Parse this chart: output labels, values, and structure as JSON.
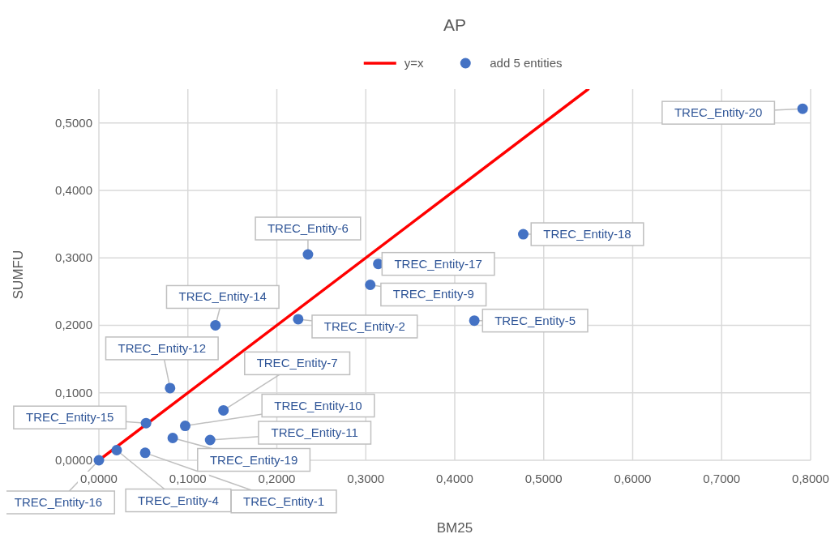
{
  "chart_data": {
    "type": "scatter",
    "title": "AP",
    "xlabel": "BM25",
    "ylabel": "SUMFU",
    "xlim": [
      0,
      0.8
    ],
    "ylim": [
      0,
      0.55
    ],
    "xticks": [
      {
        "value": 0,
        "label": "0,0000"
      },
      {
        "value": 0.1,
        "label": "0,1000"
      },
      {
        "value": 0.2,
        "label": "0,2000"
      },
      {
        "value": 0.3,
        "label": "0,3000"
      },
      {
        "value": 0.4,
        "label": "0,4000"
      },
      {
        "value": 0.5,
        "label": "0,5000"
      },
      {
        "value": 0.6,
        "label": "0,6000"
      },
      {
        "value": 0.7,
        "label": "0,7000"
      },
      {
        "value": 0.8,
        "label": "0,8000"
      }
    ],
    "yticks": [
      {
        "value": 0,
        "label": "0,0000"
      },
      {
        "value": 0.1,
        "label": "0,1000"
      },
      {
        "value": 0.2,
        "label": "0,2000"
      },
      {
        "value": 0.3,
        "label": "0,3000"
      },
      {
        "value": 0.4,
        "label": "0,4000"
      },
      {
        "value": 0.5,
        "label": "0,5000"
      }
    ],
    "grid": true,
    "legend": "top",
    "series": [
      {
        "name": "y=x",
        "type": "line",
        "color": "#ff0000",
        "line_style": "solid",
        "x": [
          0,
          0.55
        ],
        "values": [
          0,
          0.55
        ]
      },
      {
        "name": "add 5 entities",
        "type": "scatter",
        "marker": "circle",
        "color": "#4472c4",
        "x": [
          0.052,
          0.224,
          0.02,
          0.422,
          0.235,
          0.14,
          0.305,
          0.097,
          0.125,
          0.08,
          0.131,
          0.053,
          0.0,
          0.314,
          0.477,
          0.083,
          0.791
        ],
        "values": [
          0.011,
          0.209,
          0.015,
          0.207,
          0.305,
          0.074,
          0.26,
          0.051,
          0.03,
          0.107,
          0.2,
          0.055,
          0.0,
          0.291,
          0.335,
          0.033,
          0.521
        ]
      }
    ],
    "annotations": [
      {
        "text": "TREC_Entity-1",
        "x": 0.052,
        "y": 0.011
      },
      {
        "text": "TREC_Entity-2",
        "x": 0.224,
        "y": 0.209
      },
      {
        "text": "TREC_Entity-4",
        "x": 0.02,
        "y": 0.015
      },
      {
        "text": "TREC_Entity-5",
        "x": 0.422,
        "y": 0.207
      },
      {
        "text": "TREC_Entity-6",
        "x": 0.235,
        "y": 0.305
      },
      {
        "text": "TREC_Entity-7",
        "x": 0.14,
        "y": 0.074
      },
      {
        "text": "TREC_Entity-9",
        "x": 0.305,
        "y": 0.26
      },
      {
        "text": "TREC_Entity-10",
        "x": 0.097,
        "y": 0.051
      },
      {
        "text": "TREC_Entity-11",
        "x": 0.125,
        "y": 0.03
      },
      {
        "text": "TREC_Entity-12",
        "x": 0.08,
        "y": 0.107
      },
      {
        "text": "TREC_Entity-14",
        "x": 0.131,
        "y": 0.2
      },
      {
        "text": "TREC_Entity-15",
        "x": 0.053,
        "y": 0.055
      },
      {
        "text": "TREC_Entity-16",
        "x": 0.0,
        "y": 0.0
      },
      {
        "text": "TREC_Entity-17",
        "x": 0.314,
        "y": 0.291
      },
      {
        "text": "TREC_Entity-18",
        "x": 0.477,
        "y": 0.335
      },
      {
        "text": "TREC_Entity-19",
        "x": 0.083,
        "y": 0.033
      },
      {
        "text": "TREC_Entity-20",
        "x": 0.791,
        "y": 0.521
      }
    ]
  }
}
